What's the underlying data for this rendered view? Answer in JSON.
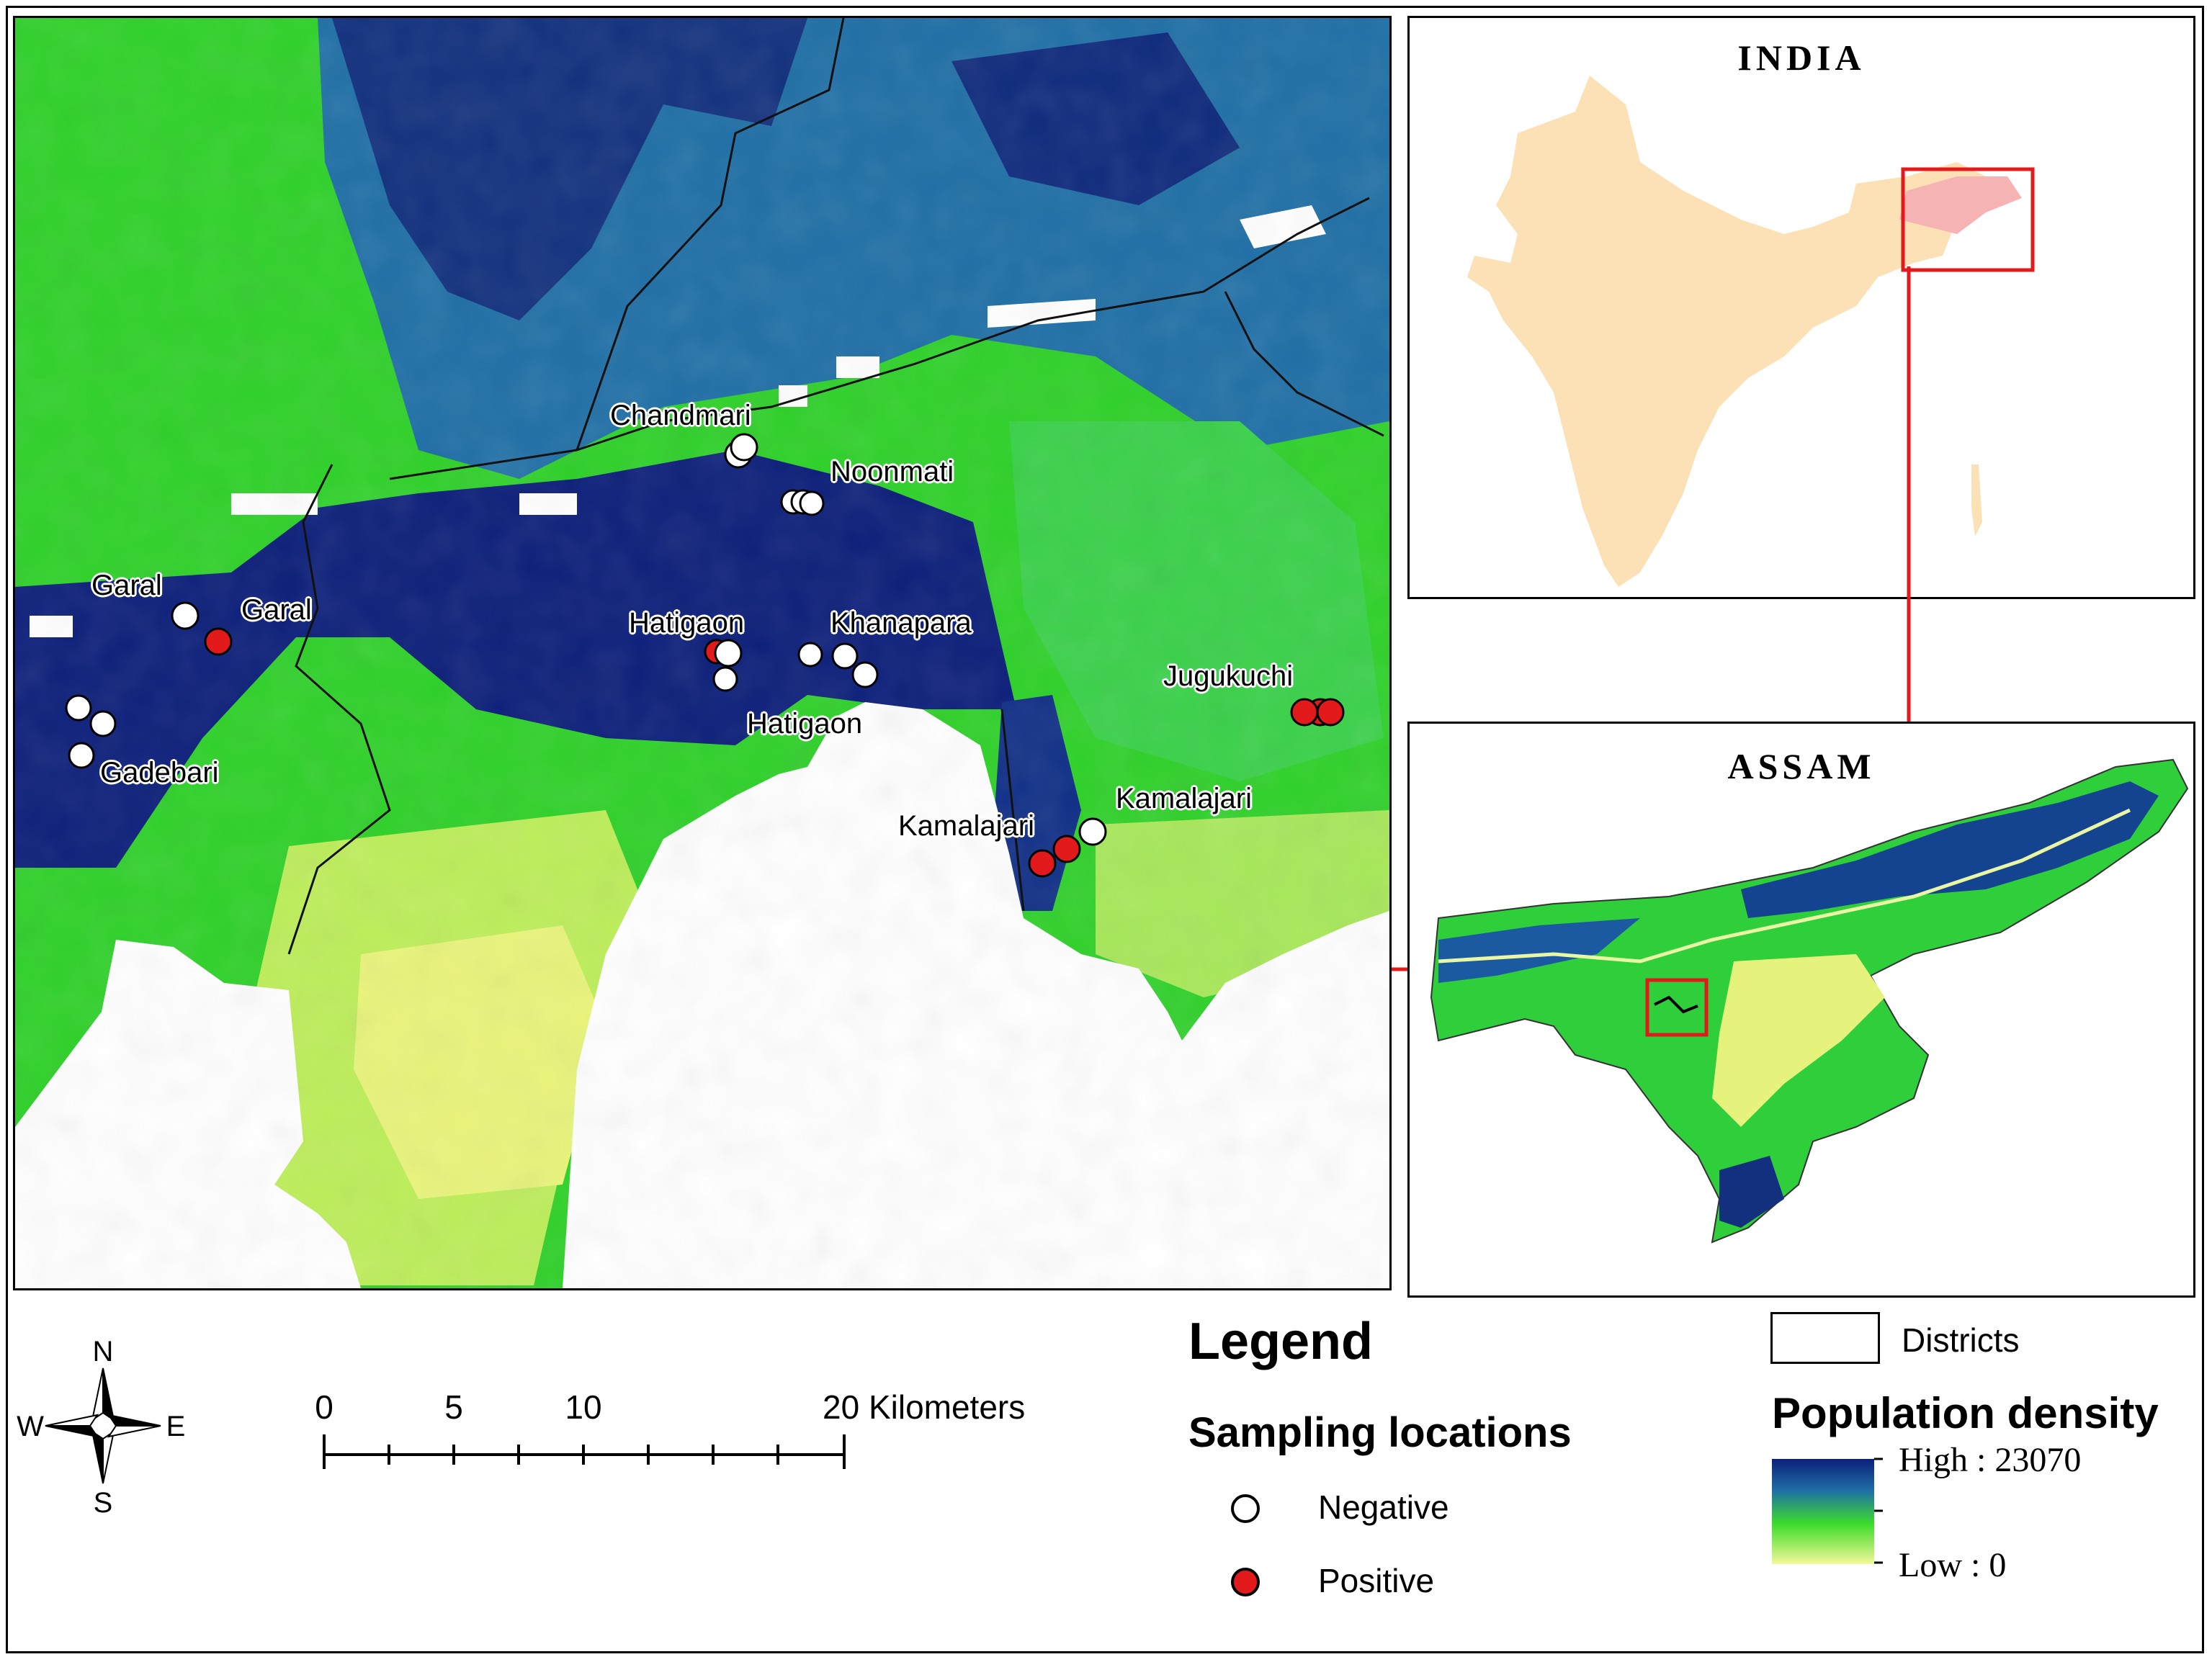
{
  "main_map": {
    "site_labels": [
      {
        "text": "Chandmari"
      },
      {
        "text": "Noonmati"
      },
      {
        "text": "Garal"
      },
      {
        "text": "Garal"
      },
      {
        "text": "Hatigaon"
      },
      {
        "text": "Khanapara"
      },
      {
        "text": "Hatigaon"
      },
      {
        "text": "Jugukuchi"
      },
      {
        "text": "Gadebari"
      },
      {
        "text": "Kamalajari"
      },
      {
        "text": "Kamalajari"
      }
    ],
    "colors": {
      "negative": "#ffffff",
      "positive": "#e31a1c",
      "low": "#f4f89a",
      "mid": "#3ddc2a",
      "high": "#0c1f7a"
    }
  },
  "india_map": {
    "title": "INDIA",
    "land_color": "#fde1b6",
    "assam_color": "#f6b3b3",
    "frame_color": "#e31a1c"
  },
  "assam_map": {
    "title": "ASSAM"
  },
  "compass": {
    "n": "N",
    "e": "E",
    "s": "S",
    "w": "W"
  },
  "scale_bar": {
    "labels": [
      "0",
      "5",
      "10",
      "20 Kilometers"
    ]
  },
  "legend": {
    "title": "Legend",
    "sampling_title": "Sampling locations",
    "negative_label": "Negative",
    "positive_label": "Positive",
    "districts_label": "Districts",
    "density_title": "Population density",
    "high_label": "High : 23070",
    "low_label": "Low : 0"
  }
}
